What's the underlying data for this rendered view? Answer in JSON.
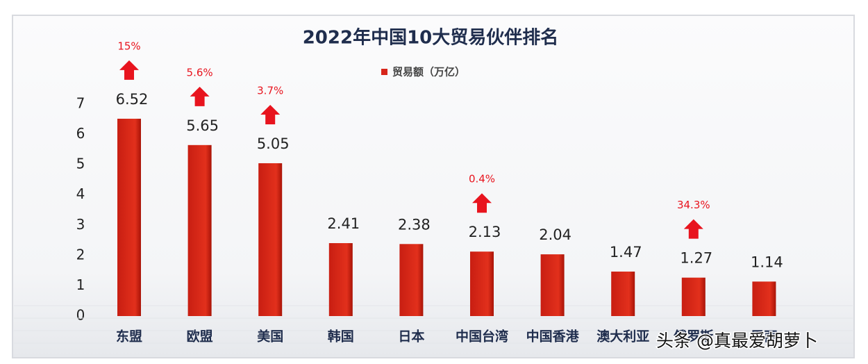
{
  "chart_data": {
    "type": "bar",
    "title": "2022年中国10大贸易伙伴排名",
    "categories": [
      "东盟",
      "欧盟",
      "美国",
      "韩国",
      "日本",
      "中国台湾",
      "中国香港",
      "澳大利亚",
      "俄罗斯",
      "巴西"
    ],
    "series": [
      {
        "name": "贸易额（万亿）",
        "color": "#d7261b",
        "values": [
          6.52,
          5.65,
          5.05,
          2.41,
          2.38,
          2.13,
          2.04,
          1.47,
          1.27,
          1.14
        ]
      }
    ],
    "growth": {
      "values": [
        15,
        5.6,
        3.7,
        null,
        null,
        0.4,
        null,
        null,
        34.3,
        null
      ],
      "value_labels": [
        "15%",
        "5.6%",
        "3.7%",
        null,
        null,
        "0.4%",
        null,
        null,
        "34.3%",
        null
      ],
      "color": "#e8141e"
    },
    "ylim": [
      0,
      7
    ],
    "yticks": [
      0,
      1,
      2,
      3,
      4,
      5,
      6,
      7
    ],
    "watermark": "头条 @真最爱胡萝卜"
  }
}
